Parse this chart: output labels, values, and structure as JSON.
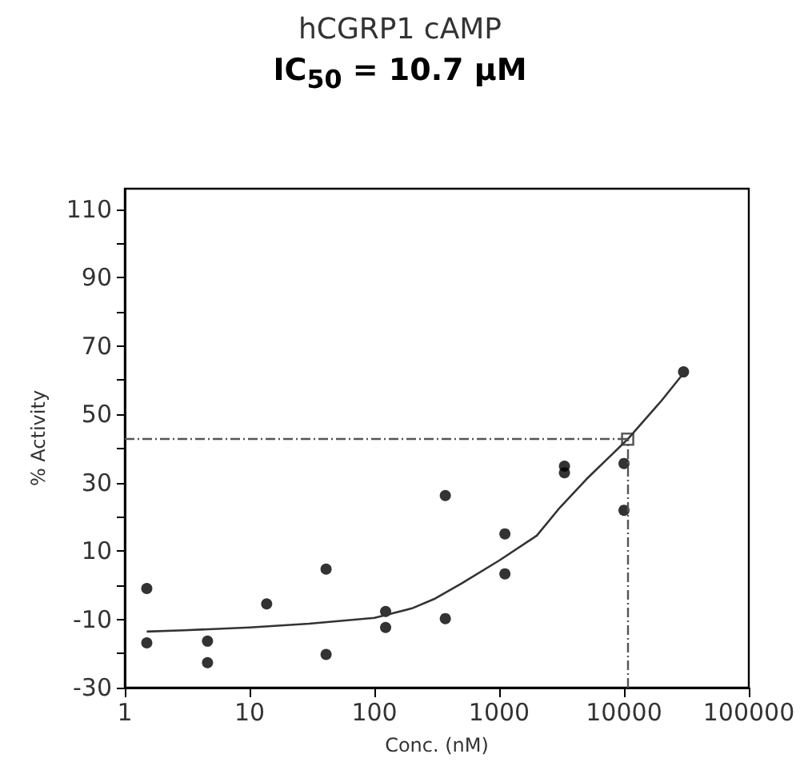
{
  "chart_data": {
    "type": "scatter",
    "title": "hCGRP1 cAMP",
    "subtitle": "IC$_{50}$ = 10.7 µM",
    "xlabel": "Conc. (nM)",
    "ylabel": "% Activity",
    "log": "x",
    "grid": false,
    "marker": "circle",
    "xlim": [
      1,
      100000
    ],
    "xticks": [
      1,
      10,
      100,
      1000,
      10000,
      100000
    ],
    "ylim": [
      -30,
      116
    ],
    "yticks": [
      -30,
      {
        "value": -20,
        "label": null
      },
      -10,
      {
        "value": 0,
        "label": null
      },
      10,
      {
        "value": 20,
        "label": null
      },
      30,
      {
        "value": 40,
        "label": null
      },
      50,
      {
        "value": 60,
        "label": null
      },
      70,
      {
        "value": 80,
        "label": null
      },
      90,
      {
        "value": 100,
        "label": null
      },
      110
    ],
    "series": [
      {
        "color": "#000000",
        "x": [
          1.5,
          1.5,
          4.6,
          4.6,
          13.7,
          41,
          41,
          123,
          123,
          370,
          370,
          1111,
          1111,
          3333,
          3333,
          10000,
          10000,
          30000
        ],
        "values": [
          -1,
          -16.9,
          -16.4,
          -22.7,
          -5.5,
          4.7,
          -20.3,
          -7.7,
          -12.4,
          26.2,
          -9.8,
          15,
          3.3,
          34.8,
          32.9,
          35.6,
          21.9,
          62.4
        ]
      },
      {
        "type": "line",
        "color": "#333333",
        "marker": "none",
        "x": [
          1.5,
          3,
          10,
          30,
          100,
          200,
          300,
          500,
          1000,
          2000,
          3000,
          5000,
          10700,
          20000,
          30000
        ],
        "values": [
          -13.6,
          -13.2,
          -12.4,
          -11.3,
          -9.6,
          -6.8,
          -4.1,
          0.5,
          7.2,
          14.5,
          22.3,
          31,
          42.7,
          54,
          62
        ]
      },
      {
        "type": "scatter",
        "color": "#333333",
        "marker": "square",
        "x": [
          10700
        ],
        "values": [
          42.7
        ]
      }
    ],
    "ref_lines": [
      {
        "axis": "y",
        "value": 42.7,
        "color": "#555555",
        "line_style": "dashed"
      },
      {
        "axis": "x",
        "value": 10700,
        "color": "#555555",
        "line_style": "dashed"
      }
    ]
  }
}
